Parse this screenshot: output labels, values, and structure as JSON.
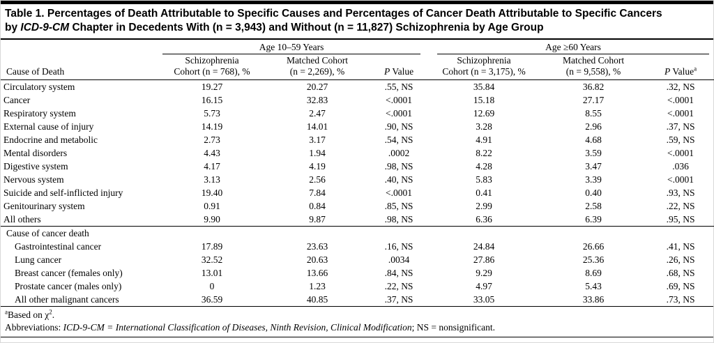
{
  "title": {
    "line1": "Table 1. Percentages of Death Attributable to Specific Causes and Percentages of Cancer Death Attributable to Specific Cancers",
    "line2_pre": "by ",
    "italic": "ICD-9-CM",
    "line2_post": " Chapter in Decedents With (n = 3,943) and Without (n = 11,827) Schizophrenia by Age Group"
  },
  "headers": {
    "group1": "Age 10–59 Years",
    "group2": "Age ≥60 Years",
    "cause": "Cause of Death",
    "g1_schiz_line1": "Schizophrenia",
    "g1_schiz_line2": "Cohort (n = 768), %",
    "g1_matched_line1": "Matched Cohort",
    "g1_matched_line2": "(n = 2,269), %",
    "p_italic": "P",
    "p_rest": " Value",
    "g2_schiz_line1": "Schizophrenia",
    "g2_schiz_line2": "Cohort (n = 3,175), %",
    "g2_matched_line1": "Matched Cohort",
    "g2_matched_line2": "(n = 9,558), %",
    "p2_sup": "a"
  },
  "sections": [
    {
      "header": null,
      "indent": false,
      "rows": [
        {
          "label": "Circulatory system",
          "values": [
            "19.27",
            "20.27",
            ".55, NS",
            "35.84",
            "36.82",
            ".32, NS"
          ]
        },
        {
          "label": "Cancer",
          "values": [
            "16.15",
            "32.83",
            "<.0001",
            "15.18",
            "27.17",
            "<.0001"
          ]
        },
        {
          "label": "Respiratory system",
          "values": [
            "5.73",
            "2.47",
            "<.0001",
            "12.69",
            "8.55",
            "<.0001"
          ]
        },
        {
          "label": "External cause of injury",
          "values": [
            "14.19",
            "14.01",
            ".90, NS",
            "3.28",
            "2.96",
            ".37, NS"
          ]
        },
        {
          "label": "Endocrine and metabolic",
          "values": [
            "2.73",
            "3.17",
            ".54, NS",
            "4.91",
            "4.68",
            ".59, NS"
          ]
        },
        {
          "label": "Mental disorders",
          "values": [
            "4.43",
            "1.94",
            ".0002",
            "8.22",
            "3.59",
            "<.0001"
          ]
        },
        {
          "label": "Digestive system",
          "values": [
            "4.17",
            "4.19",
            ".98, NS",
            "4.28",
            "3.47",
            ".036"
          ]
        },
        {
          "label": "Nervous system",
          "values": [
            "3.13",
            "2.56",
            ".40, NS",
            "5.83",
            "3.39",
            "<.0001"
          ]
        },
        {
          "label": "Suicide and self-inflicted injury",
          "values": [
            "19.40",
            "7.84",
            "<.0001",
            "0.41",
            "0.40",
            ".93, NS"
          ]
        },
        {
          "label": "Genitourinary system",
          "values": [
            "0.91",
            "0.84",
            ".85, NS",
            "2.99",
            "2.58",
            ".22, NS"
          ]
        },
        {
          "label": "All others",
          "values": [
            "9.90",
            "9.87",
            ".98, NS",
            "6.36",
            "6.39",
            ".95, NS"
          ]
        }
      ]
    },
    {
      "header": "Cause of cancer death",
      "indent": true,
      "rows": [
        {
          "label": "Gastrointestinal cancer",
          "values": [
            "17.89",
            "23.63",
            ".16, NS",
            "24.84",
            "26.66",
            ".41, NS"
          ]
        },
        {
          "label": "Lung cancer",
          "values": [
            "32.52",
            "20.63",
            ".0034",
            "27.86",
            "25.36",
            ".26, NS"
          ]
        },
        {
          "label": "Breast cancer (females only)",
          "values": [
            "13.01",
            "13.66",
            ".84, NS",
            "9.29",
            "8.69",
            ".68, NS"
          ]
        },
        {
          "label": "Prostate cancer (males only)",
          "values": [
            "0",
            "1.23",
            ".22, NS",
            "4.97",
            "5.43",
            ".69, NS"
          ]
        },
        {
          "label": "All other malignant cancers",
          "values": [
            "36.59",
            "40.85",
            ".37, NS",
            "33.05",
            "33.86",
            ".73, NS"
          ]
        }
      ]
    }
  ],
  "footnotes": {
    "a_marker": "a",
    "a_pre": "Based on χ",
    "a_sup": "2",
    "a_post": ".",
    "abbr_label": "Abbreviations: ",
    "abbr_italic": "ICD-9-CM = International Classification of Diseases, Ninth Revision, Clinical Modification",
    "abbr_rest": "; NS = nonsignificant."
  }
}
